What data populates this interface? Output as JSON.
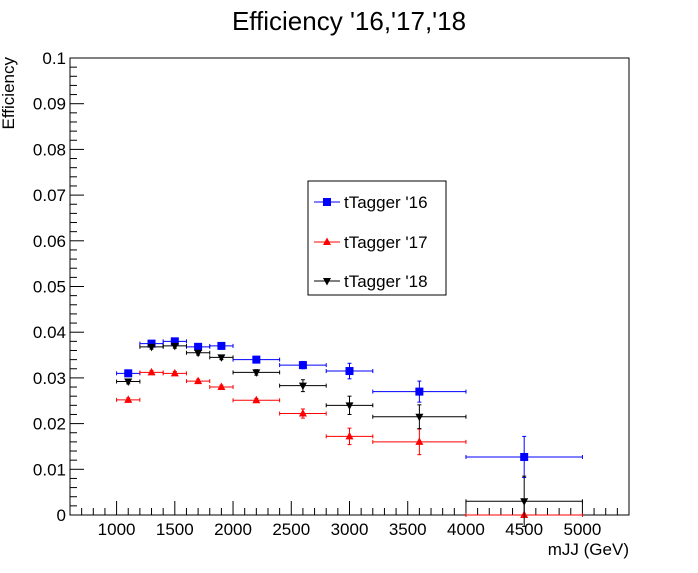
{
  "chart_data": {
    "type": "scatter",
    "title": "Efficiency '16,'17,'18",
    "xlabel": "mJJ (GeV)",
    "ylabel": "Efficiency",
    "xlim": [
      600,
      5400
    ],
    "ylim": [
      0,
      0.1
    ],
    "x_ticks": [
      1000,
      1500,
      2000,
      2500,
      3000,
      3500,
      4000,
      4500,
      5000
    ],
    "x_tick_labels": [
      "1000",
      "1500",
      "2000",
      "2500",
      "3000",
      "3500",
      "4000",
      "4500",
      "5000"
    ],
    "y_ticks": [
      0,
      0.01,
      0.02,
      0.03,
      0.04,
      0.05,
      0.06,
      0.07,
      0.08,
      0.09,
      0.1
    ],
    "y_tick_labels": [
      "0",
      "0.01",
      "0.02",
      "0.03",
      "0.04",
      "0.05",
      "0.06",
      "0.07",
      "0.08",
      "0.09",
      "0.1"
    ],
    "grid": false,
    "legend_position": "center",
    "series": [
      {
        "name": "tTagger '16",
        "color": "#0000ff",
        "marker": "square",
        "points": [
          {
            "x": 1100,
            "xlo": 1000,
            "xhi": 1200,
            "y": 0.031,
            "yerr": 0.0006
          },
          {
            "x": 1300,
            "xlo": 1200,
            "xhi": 1400,
            "y": 0.0375,
            "yerr": 0.0006
          },
          {
            "x": 1500,
            "xlo": 1400,
            "xhi": 1600,
            "y": 0.038,
            "yerr": 0.0006
          },
          {
            "x": 1700,
            "xlo": 1600,
            "xhi": 1800,
            "y": 0.0368,
            "yerr": 0.0006
          },
          {
            "x": 1900,
            "xlo": 1800,
            "xhi": 2000,
            "y": 0.037,
            "yerr": 0.0006
          },
          {
            "x": 2200,
            "xlo": 2000,
            "xhi": 2400,
            "y": 0.034,
            "yerr": 0.0006
          },
          {
            "x": 2600,
            "xlo": 2400,
            "xhi": 2800,
            "y": 0.0328,
            "yerr": 0.0008
          },
          {
            "x": 3000,
            "xlo": 2800,
            "xhi": 3200,
            "y": 0.0315,
            "yerr": 0.0017
          },
          {
            "x": 3600,
            "xlo": 3200,
            "xhi": 4000,
            "y": 0.027,
            "yerr": 0.0023
          },
          {
            "x": 4500,
            "xlo": 4000,
            "xhi": 5000,
            "y": 0.0127,
            "yerr": 0.0045
          }
        ]
      },
      {
        "name": "tTagger '17",
        "color": "#ff0000",
        "marker": "triangle-up",
        "points": [
          {
            "x": 1100,
            "xlo": 1000,
            "xhi": 1200,
            "y": 0.0252,
            "yerr": 0.0004
          },
          {
            "x": 1300,
            "xlo": 1200,
            "xhi": 1400,
            "y": 0.0312,
            "yerr": 0.0004
          },
          {
            "x": 1500,
            "xlo": 1400,
            "xhi": 1600,
            "y": 0.031,
            "yerr": 0.0004
          },
          {
            "x": 1700,
            "xlo": 1600,
            "xhi": 1800,
            "y": 0.0293,
            "yerr": 0.0004
          },
          {
            "x": 1900,
            "xlo": 1800,
            "xhi": 2000,
            "y": 0.028,
            "yerr": 0.0004
          },
          {
            "x": 2200,
            "xlo": 2000,
            "xhi": 2400,
            "y": 0.0251,
            "yerr": 0.0004
          },
          {
            "x": 2600,
            "xlo": 2400,
            "xhi": 2800,
            "y": 0.0222,
            "yerr": 0.001
          },
          {
            "x": 3000,
            "xlo": 2800,
            "xhi": 3200,
            "y": 0.0172,
            "yerr": 0.0018
          },
          {
            "x": 3600,
            "xlo": 3200,
            "xhi": 4000,
            "y": 0.016,
            "yerr": 0.0028
          },
          {
            "x": 4500,
            "xlo": 4000,
            "xhi": 5000,
            "y": 0.0,
            "yerr": 0.0
          }
        ]
      },
      {
        "name": "tTagger '18",
        "color": "#000000",
        "marker": "triangle-down",
        "points": [
          {
            "x": 1100,
            "xlo": 1000,
            "xhi": 1200,
            "y": 0.0292,
            "yerr": 0.0005
          },
          {
            "x": 1300,
            "xlo": 1200,
            "xhi": 1400,
            "y": 0.0368,
            "yerr": 0.0005
          },
          {
            "x": 1500,
            "xlo": 1400,
            "xhi": 1600,
            "y": 0.037,
            "yerr": 0.0005
          },
          {
            "x": 1700,
            "xlo": 1600,
            "xhi": 1800,
            "y": 0.0355,
            "yerr": 0.0005
          },
          {
            "x": 1900,
            "xlo": 1800,
            "xhi": 2000,
            "y": 0.0345,
            "yerr": 0.0005
          },
          {
            "x": 2200,
            "xlo": 2000,
            "xhi": 2400,
            "y": 0.0312,
            "yerr": 0.0006
          },
          {
            "x": 2600,
            "xlo": 2400,
            "xhi": 2800,
            "y": 0.0283,
            "yerr": 0.0013
          },
          {
            "x": 3000,
            "xlo": 2800,
            "xhi": 3200,
            "y": 0.024,
            "yerr": 0.002
          },
          {
            "x": 3600,
            "xlo": 3200,
            "xhi": 4000,
            "y": 0.0215,
            "yerr": 0.0026
          },
          {
            "x": 4500,
            "xlo": 4000,
            "xhi": 5000,
            "y": 0.003,
            "yerr": 0.0055
          }
        ]
      }
    ]
  }
}
